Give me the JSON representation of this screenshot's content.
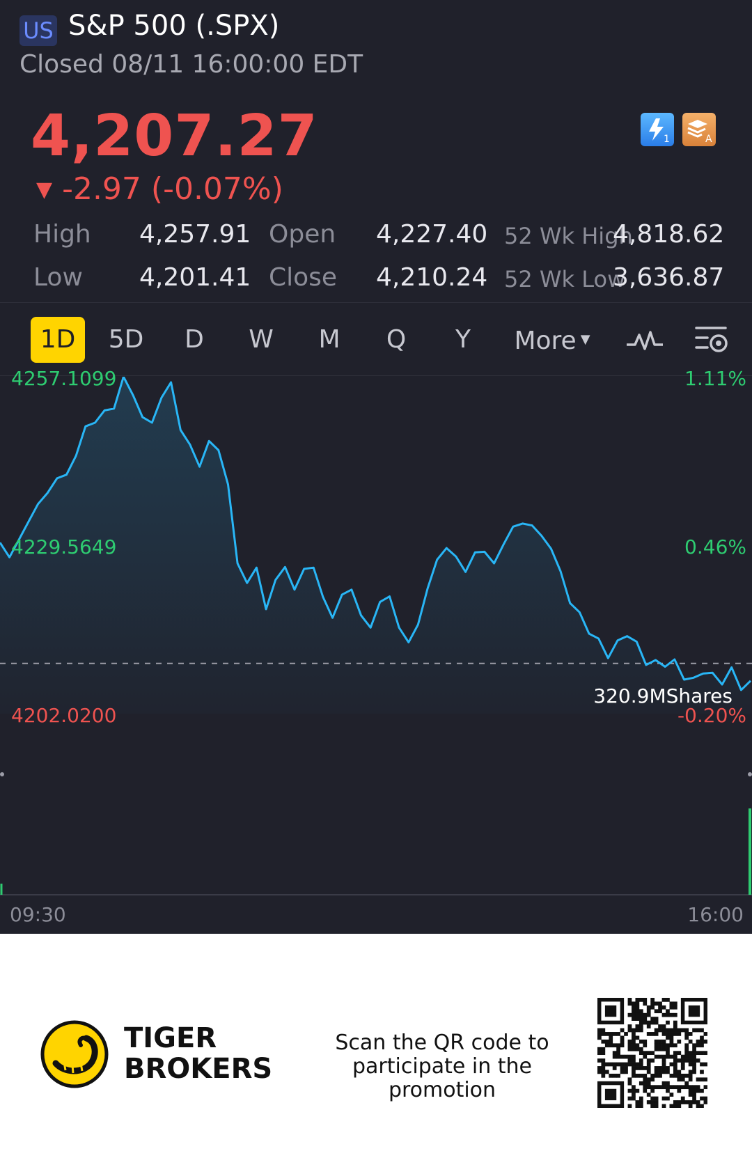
{
  "header": {
    "market_badge": "US",
    "title": "S&P 500 (.SPX)",
    "status": "Closed 08/11 16:00:00 EDT"
  },
  "quote": {
    "last_price": "4,207.27",
    "change_arrow": "▼",
    "change": "-2.97 (-0.07%)",
    "price_color": "#ef5350"
  },
  "icons": {
    "lightning": "lightning-icon",
    "stack": "stack-icon"
  },
  "stats": {
    "high_label": "High",
    "high_value": "4,257.91",
    "low_label": "Low",
    "low_value": "4,201.41",
    "open_label": "Open",
    "open_value": "4,227.40",
    "close_label": "Close",
    "close_value": "4,210.24",
    "wk52_high_label": "52 Wk High",
    "wk52_high_value": "4,818.62",
    "wk52_low_label": "52 Wk Low",
    "wk52_low_value": "3,636.87"
  },
  "tabs": {
    "items": [
      "1D",
      "5D",
      "D",
      "W",
      "M",
      "Q",
      "Y",
      "More"
    ],
    "active": "1D",
    "accent": "#ffd400"
  },
  "chart_data": {
    "type": "line",
    "x_start_label": "09:30",
    "x_end_label": "16:00",
    "y_left_labels": [
      "4257.1099",
      "4229.5649",
      "4202.0200"
    ],
    "y_right_labels": [
      "1.11%",
      "0.46%",
      "-0.20%"
    ],
    "ylim": [
      4202.02,
      4257.1099
    ],
    "reference_close": 4210.24,
    "volume_label": "320.9MShares",
    "line_color": "#29b6f6",
    "up_color": "#2ecc71",
    "down_color": "#ef5350",
    "series": [
      {
        "values": [
          4230.0,
          4227.6,
          4230.5,
          4233.4,
          4236.3,
          4238.1,
          4240.5,
          4241.1,
          4244.2,
          4249.0,
          4249.6,
          4251.6,
          4251.9,
          4257.1,
          4254.1,
          4250.5,
          4249.6,
          4253.7,
          4256.2,
          4248.4,
          4246.0,
          4242.4,
          4246.6,
          4245.1,
          4239.5,
          4226.6,
          4223.4,
          4225.9,
          4219.1,
          4223.9,
          4226.0,
          4222.3,
          4225.7,
          4225.9,
          4221.1,
          4217.7,
          4221.5,
          4222.3,
          4218.1,
          4216.1,
          4220.3,
          4221.2,
          4216.1,
          4213.7,
          4216.6,
          4222.5,
          4227.2,
          4229.1,
          4227.7,
          4225.2,
          4228.4,
          4228.5,
          4226.6,
          4229.7,
          4232.6,
          4233.1,
          4232.8,
          4231.1,
          4229.0,
          4225.3,
          4220.1,
          4218.6,
          4215.1,
          4214.3,
          4211.1,
          4214.0,
          4214.7,
          4213.8,
          4210.0,
          4210.8,
          4209.7,
          4210.9,
          4207.6,
          4207.9,
          4208.6,
          4208.7,
          4206.8,
          4209.6,
          4205.9,
          4207.4
        ]
      }
    ]
  },
  "footer": {
    "brand_name": "TIGER BROKERS",
    "promo_text": "Scan the QR code to participate in the promotion",
    "logo": "tiger-brokers-logo",
    "qr": "qr-code"
  }
}
